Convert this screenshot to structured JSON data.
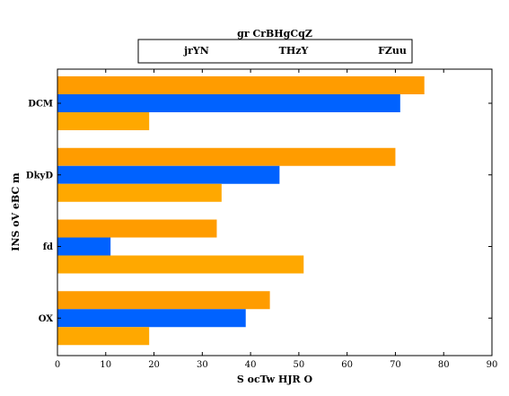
{
  "chart_data": {
    "type": "bar",
    "orientation": "horizontal",
    "categories": [
      "DCM",
      "DkyD",
      "fd",
      "OX"
    ],
    "series": [
      {
        "name": "jrYN",
        "color": "#ff9c00",
        "values": [
          76,
          70,
          33,
          44
        ]
      },
      {
        "name": "THzY",
        "color": "#0062ff",
        "values": [
          71,
          46,
          11,
          39
        ]
      },
      {
        "name": "FZuu",
        "color": "#ffa800",
        "values": [
          19,
          34,
          51,
          19
        ]
      }
    ],
    "legend_title": "gr CrBHgCqZ",
    "legend_position": "top",
    "xlabel": "S ocTw HJR O",
    "ylabel": "INS oV eBC m",
    "xlim": [
      0,
      90
    ],
    "xticks": [
      0,
      10,
      20,
      30,
      40,
      50,
      60,
      70,
      80,
      90
    ],
    "grid": false
  }
}
